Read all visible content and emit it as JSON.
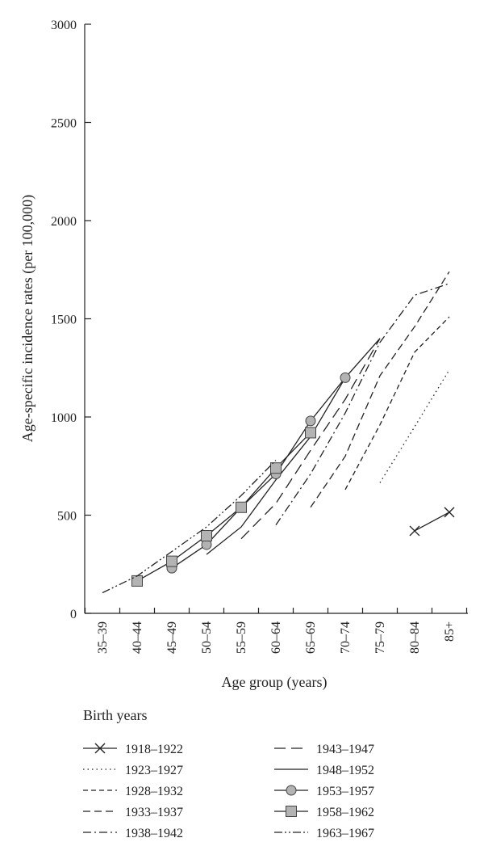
{
  "chart_data": {
    "type": "line",
    "xlabel": "Age group (years)",
    "ylabel": "Age-specific incidence rates (per 100,000)",
    "ylim": [
      0,
      3000
    ],
    "yticks": [
      0,
      500,
      1000,
      1500,
      2000,
      2500,
      3000
    ],
    "categories": [
      "35–39",
      "40–44",
      "45–49",
      "50–54",
      "55–59",
      "60–64",
      "65–69",
      "70–74",
      "75–79",
      "80–84",
      "85+"
    ],
    "legend_title": "Birth years",
    "series": [
      {
        "name": "1918–1922",
        "style": "x-marker",
        "color": "#222222",
        "points": [
          [
            "80–84",
            420
          ],
          [
            "85+",
            515
          ]
        ]
      },
      {
        "name": "1923–1927",
        "style": "dotted",
        "color": "#222222",
        "points": [
          [
            "75–79",
            665
          ],
          [
            "80–84",
            950
          ],
          [
            "85+",
            1240
          ]
        ]
      },
      {
        "name": "1928–1932",
        "style": "short-dash",
        "color": "#222222",
        "points": [
          [
            "70–74",
            630
          ],
          [
            "75–79",
            960
          ],
          [
            "80–84",
            1330
          ],
          [
            "85+",
            1510
          ]
        ]
      },
      {
        "name": "1933–1937",
        "style": "dashed",
        "color": "#222222",
        "points": [
          [
            "65–69",
            540
          ],
          [
            "70–74",
            800
          ],
          [
            "75–79",
            1210
          ],
          [
            "80–84",
            1460
          ],
          [
            "85+",
            1740
          ]
        ]
      },
      {
        "name": "1938–1942",
        "style": "dash-dot",
        "color": "#222222",
        "points": [
          [
            "60–64",
            450
          ],
          [
            "65–69",
            710
          ],
          [
            "70–74",
            1020
          ],
          [
            "75–79",
            1380
          ],
          [
            "80–84",
            1620
          ],
          [
            "85+",
            1680
          ]
        ]
      },
      {
        "name": "1943–1947",
        "style": "long-dash",
        "color": "#222222",
        "points": [
          [
            "55–59",
            380
          ],
          [
            "60–64",
            560
          ],
          [
            "65–69",
            830
          ],
          [
            "70–74",
            1090
          ],
          [
            "75–79",
            1400
          ]
        ]
      },
      {
        "name": "1948–1952",
        "style": "solid",
        "color": "#222222",
        "points": [
          [
            "50–54",
            300
          ],
          [
            "55–59",
            440
          ],
          [
            "60–64",
            680
          ],
          [
            "65–69",
            900
          ],
          [
            "70–74",
            1200
          ],
          [
            "75–79",
            1400
          ]
        ]
      },
      {
        "name": "1953–1957",
        "style": "circle-marker",
        "color": "#222222",
        "points": [
          [
            "45–49",
            230
          ],
          [
            "50–54",
            350
          ],
          [
            "55–59",
            540
          ],
          [
            "60–64",
            710
          ],
          [
            "65–69",
            980
          ],
          [
            "70–74",
            1200
          ]
        ]
      },
      {
        "name": "1958–1962",
        "style": "square-marker",
        "color": "#222222",
        "points": [
          [
            "40–44",
            165
          ],
          [
            "45–49",
            265
          ],
          [
            "50–54",
            395
          ],
          [
            "55–59",
            540
          ],
          [
            "60–64",
            740
          ],
          [
            "65–69",
            920
          ]
        ]
      },
      {
        "name": "1963–1967",
        "style": "dash-dot-dot",
        "color": "#222222",
        "points": [
          [
            "35–39",
            105
          ],
          [
            "40–44",
            190
          ],
          [
            "45–49",
            315
          ],
          [
            "50–54",
            440
          ],
          [
            "55–59",
            600
          ],
          [
            "60–64",
            780
          ]
        ]
      }
    ]
  }
}
